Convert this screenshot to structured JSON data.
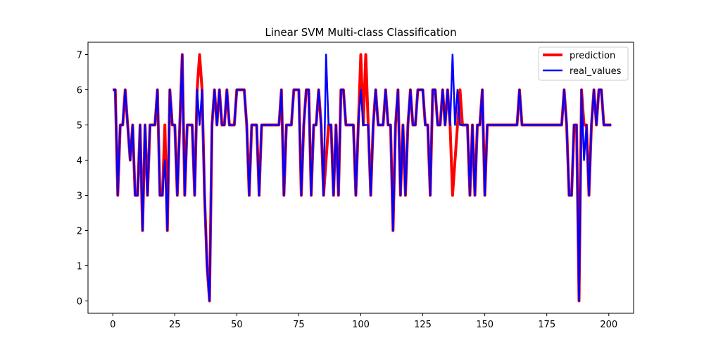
{
  "chart_data": {
    "type": "line",
    "title": "Linear SVM Multi-class Classification",
    "xlabel": "",
    "ylabel": "",
    "xlim": [
      -10,
      210
    ],
    "ylim": [
      -0.35,
      7.35
    ],
    "xticks": [
      0,
      25,
      50,
      75,
      100,
      125,
      150,
      175,
      200
    ],
    "yticks": [
      0,
      1,
      2,
      3,
      4,
      5,
      6,
      7
    ],
    "grid": false,
    "legend_position": "top-right",
    "series": [
      {
        "name": "prediction",
        "color": "#ff0000",
        "values": [
          6,
          6,
          3,
          5,
          5,
          6,
          5,
          4,
          5,
          3,
          3,
          5,
          2,
          5,
          3,
          5,
          5,
          5,
          6,
          3,
          3,
          5,
          2,
          6,
          5,
          5,
          3,
          5,
          7,
          3,
          5,
          5,
          5,
          3,
          6,
          7,
          6,
          3,
          1,
          0,
          5,
          6,
          5,
          6,
          5,
          5,
          6,
          5,
          5,
          5,
          6,
          6,
          6,
          6,
          5,
          3,
          5,
          5,
          5,
          3,
          5,
          5,
          5,
          5,
          5,
          5,
          5,
          5,
          6,
          3,
          5,
          5,
          5,
          6,
          6,
          6,
          3,
          5,
          6,
          6,
          3,
          5,
          5,
          6,
          5,
          3,
          4,
          5,
          5,
          3,
          5,
          3,
          6,
          6,
          5,
          5,
          5,
          5,
          3,
          5,
          7,
          5,
          7,
          5,
          3,
          5,
          6,
          5,
          5,
          5,
          6,
          5,
          5,
          2,
          5,
          6,
          3,
          5,
          3,
          5,
          6,
          5,
          5,
          6,
          6,
          6,
          5,
          5,
          3,
          6,
          6,
          5,
          5,
          6,
          5,
          6,
          5,
          3,
          4,
          5,
          6,
          5,
          5,
          5,
          3,
          5,
          3,
          5,
          5,
          6,
          3,
          5,
          5,
          5,
          5,
          5,
          5,
          5,
          5,
          5,
          5,
          5,
          5,
          5,
          6,
          5,
          5,
          5,
          5,
          5,
          5,
          5,
          5,
          5,
          5,
          5,
          5,
          5,
          5,
          5,
          5,
          5,
          6,
          5,
          3,
          3,
          5,
          5,
          0,
          6,
          5,
          5,
          3,
          5,
          6,
          5,
          6,
          6,
          5,
          5,
          5,
          5
        ]
      },
      {
        "name": "real_values",
        "color": "#0000ff",
        "values": [
          6,
          6,
          3,
          5,
          5,
          6,
          5,
          4,
          5,
          3,
          3,
          5,
          2,
          5,
          3,
          5,
          5,
          5,
          6,
          3,
          3,
          4,
          2,
          6,
          5,
          5,
          3,
          5,
          7,
          3,
          5,
          5,
          5,
          3,
          6,
          5,
          6,
          3,
          1,
          0,
          5,
          6,
          5,
          6,
          5,
          5,
          6,
          5,
          5,
          5,
          6,
          6,
          6,
          6,
          5,
          3,
          5,
          5,
          5,
          3,
          5,
          5,
          5,
          5,
          5,
          5,
          5,
          5,
          6,
          3,
          5,
          5,
          5,
          6,
          6,
          6,
          3,
          5,
          6,
          6,
          3,
          5,
          5,
          6,
          5,
          3,
          7,
          5,
          5,
          3,
          5,
          3,
          6,
          6,
          5,
          5,
          5,
          5,
          3,
          5,
          6,
          5,
          5,
          5,
          3,
          5,
          6,
          5,
          5,
          5,
          6,
          5,
          5,
          2,
          5,
          6,
          3,
          5,
          3,
          5,
          6,
          5,
          5,
          6,
          6,
          6,
          5,
          5,
          3,
          6,
          6,
          5,
          5,
          6,
          5,
          6,
          5,
          7,
          5,
          6,
          5,
          5,
          5,
          5,
          3,
          5,
          3,
          5,
          5,
          6,
          3,
          5,
          5,
          5,
          5,
          5,
          5,
          5,
          5,
          5,
          5,
          5,
          5,
          5,
          6,
          5,
          5,
          5,
          5,
          5,
          5,
          5,
          5,
          5,
          5,
          5,
          5,
          5,
          5,
          5,
          5,
          5,
          6,
          5,
          3,
          3,
          5,
          5,
          0,
          6,
          4,
          5,
          3,
          5,
          6,
          5,
          6,
          6,
          5,
          5,
          5,
          5
        ]
      }
    ]
  }
}
